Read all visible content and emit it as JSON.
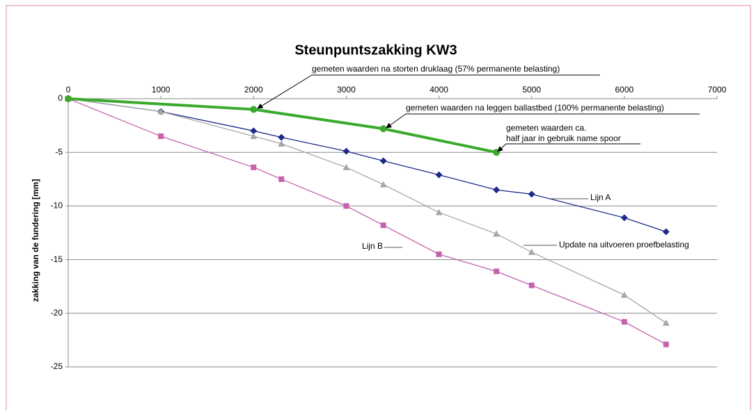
{
  "chart_data": {
    "type": "line",
    "title": "Steunpuntszakking KW3",
    "y_label": "zakking van de fundering [mm]",
    "xlim": [
      0,
      7000
    ],
    "xticks": [
      0,
      1000,
      2000,
      3000,
      4000,
      5000,
      6000,
      7000
    ],
    "ylim": [
      -25,
      0
    ],
    "yticks": [
      0,
      -5,
      -10,
      -15,
      -20,
      -25
    ],
    "grid": true,
    "series": [
      {
        "name": "Lijn A",
        "color": "#1c2a8a",
        "marker": "diamond",
        "x": [
          0,
          1000,
          2000,
          2300,
          3000,
          3400,
          4000,
          4620,
          5000,
          6000,
          6450
        ],
        "values": [
          0,
          -1.2,
          -3.0,
          -3.6,
          -4.9,
          -5.8,
          -7.1,
          -8.5,
          -8.9,
          -11.1,
          -12.4
        ]
      },
      {
        "name": "Update na uitvoeren proefbelasting",
        "color": "#a6a6a6",
        "marker": "triangle",
        "x": [
          0,
          1000,
          2000,
          2300,
          3000,
          3400,
          4000,
          4620,
          5000,
          6000,
          6450
        ],
        "values": [
          0,
          -1.2,
          -3.5,
          -4.2,
          -6.4,
          -8.0,
          -10.6,
          -12.6,
          -14.3,
          -18.3,
          -20.9
        ]
      },
      {
        "name": "Lijn B",
        "color": "#c462ac",
        "marker": "square",
        "x": [
          0,
          1000,
          2000,
          2300,
          3000,
          3400,
          4000,
          4620,
          5000,
          6000,
          6450
        ],
        "values": [
          0,
          -3.5,
          -6.4,
          -7.5,
          -10.0,
          -11.8,
          -14.5,
          -16.1,
          -17.4,
          -20.8,
          -22.9
        ]
      },
      {
        "color": "#3aaa2c",
        "marker": "circle",
        "x": [
          0,
          2000,
          3400,
          4620
        ],
        "values": [
          0,
          -1.0,
          -2.8,
          -5.0
        ]
      }
    ],
    "annotations": [
      "gemeten waarden na storten druklaag (57% permanente belasting)",
      "gemeten waarden na leggen ballastbed (100% permanente belasting)",
      "gemeten waarden ca.",
      "half jaar in gebruik name spoor"
    ]
  }
}
